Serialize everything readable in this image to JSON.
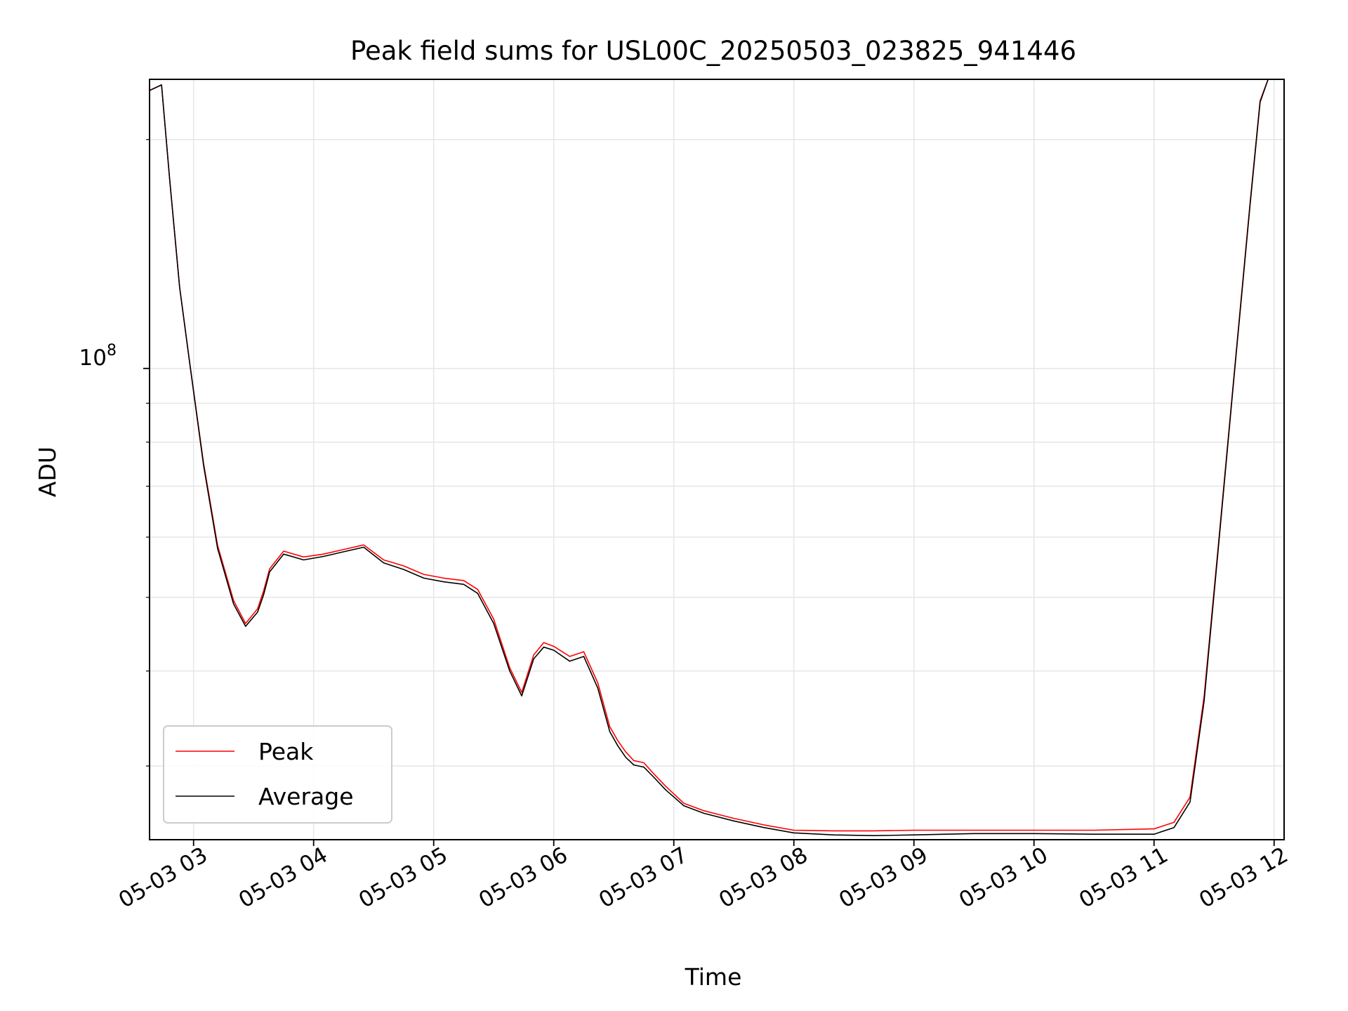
{
  "chart_data": {
    "type": "line",
    "title": "Peak field sums for USL00C_20250503_023825_941446",
    "xlabel": "Time",
    "ylabel": "ADU",
    "y_scale": "log",
    "grid": true,
    "legend_location": "lower-left",
    "x_ticks": [
      "05-03 03",
      "05-03 04",
      "05-03 05",
      "05-03 06",
      "05-03 07",
      "05-03 08",
      "05-03 09",
      "05-03 10",
      "05-03 11",
      "05-03 12"
    ],
    "x_tick_times": [
      "2025-05-03 03:00",
      "2025-05-03 04:00",
      "2025-05-03 05:00",
      "2025-05-03 06:00",
      "2025-05-03 07:00",
      "2025-05-03 08:00",
      "2025-05-03 09:00",
      "2025-05-03 10:00",
      "2025-05-03 11:00",
      "2025-05-03 12:00"
    ],
    "x_range": [
      "2025-05-03 02:38",
      "2025-05-03 12:05"
    ],
    "y_major_tick_label": {
      "base": "10",
      "exponent": "8",
      "value": 100000000
    },
    "ylim": [
      24000000,
      240000000
    ],
    "series": [
      {
        "name": "Peak",
        "color": "#ff0000",
        "x": [
          "2025-05-03 02:38",
          "2025-05-03 02:44",
          "2025-05-03 02:48",
          "2025-05-03 02:53",
          "2025-05-03 02:58",
          "2025-05-03 03:05",
          "2025-05-03 03:12",
          "2025-05-03 03:20",
          "2025-05-03 03:26",
          "2025-05-03 03:32",
          "2025-05-03 03:35",
          "2025-05-03 03:38",
          "2025-05-03 03:45",
          "2025-05-03 03:55",
          "2025-05-03 04:05",
          "2025-05-03 04:15",
          "2025-05-03 04:25",
          "2025-05-03 04:35",
          "2025-05-03 04:45",
          "2025-05-03 04:55",
          "2025-05-03 05:05",
          "2025-05-03 05:15",
          "2025-05-03 05:22",
          "2025-05-03 05:30",
          "2025-05-03 05:38",
          "2025-05-03 05:44",
          "2025-05-03 05:50",
          "2025-05-03 05:55",
          "2025-05-03 06:00",
          "2025-05-03 06:08",
          "2025-05-03 06:15",
          "2025-05-03 06:22",
          "2025-05-03 06:28",
          "2025-05-03 06:32",
          "2025-05-03 06:36",
          "2025-05-03 06:40",
          "2025-05-03 06:45",
          "2025-05-03 06:50",
          "2025-05-03 06:56",
          "2025-05-03 07:05",
          "2025-05-03 07:15",
          "2025-05-03 07:30",
          "2025-05-03 07:45",
          "2025-05-03 08:00",
          "2025-05-03 08:20",
          "2025-05-03 08:40",
          "2025-05-03 09:00",
          "2025-05-03 09:30",
          "2025-05-03 10:00",
          "2025-05-03 10:30",
          "2025-05-03 11:00",
          "2025-05-03 11:10",
          "2025-05-03 11:18",
          "2025-05-03 11:25",
          "2025-05-03 11:32",
          "2025-05-03 11:40",
          "2025-05-03 11:48",
          "2025-05-03 11:53",
          "2025-05-03 11:57"
        ],
        "values": [
          232000000,
          236000000,
          178000000,
          128000000,
          102000000,
          75000000,
          58500000,
          49500000,
          46200000,
          48300000,
          51000000,
          54500000,
          57500000,
          56500000,
          57000000,
          57800000,
          58600000,
          56000000,
          55000000,
          53600000,
          53000000,
          52600000,
          51200000,
          46800000,
          40400000,
          37500000,
          42000000,
          43600000,
          43100000,
          41800000,
          42400000,
          38600000,
          33800000,
          32400000,
          31300000,
          30500000,
          30300000,
          29300000,
          28200000,
          26800000,
          26200000,
          25600000,
          25100000,
          24700000,
          24650000,
          24650000,
          24700000,
          24700000,
          24700000,
          24700000,
          24800000,
          25300000,
          27300000,
          37000000,
          58000000,
          98000000,
          165000000,
          225000000,
          240000000
        ]
      },
      {
        "name": "Average",
        "color": "#000000",
        "x": [
          "2025-05-03 02:38",
          "2025-05-03 02:44",
          "2025-05-03 02:48",
          "2025-05-03 02:53",
          "2025-05-03 02:58",
          "2025-05-03 03:05",
          "2025-05-03 03:12",
          "2025-05-03 03:20",
          "2025-05-03 03:26",
          "2025-05-03 03:32",
          "2025-05-03 03:35",
          "2025-05-03 03:38",
          "2025-05-03 03:45",
          "2025-05-03 03:55",
          "2025-05-03 04:05",
          "2025-05-03 04:15",
          "2025-05-03 04:25",
          "2025-05-03 04:35",
          "2025-05-03 04:45",
          "2025-05-03 04:55",
          "2025-05-03 05:05",
          "2025-05-03 05:15",
          "2025-05-03 05:22",
          "2025-05-03 05:30",
          "2025-05-03 05:38",
          "2025-05-03 05:44",
          "2025-05-03 05:50",
          "2025-05-03 05:55",
          "2025-05-03 06:00",
          "2025-05-03 06:08",
          "2025-05-03 06:15",
          "2025-05-03 06:22",
          "2025-05-03 06:28",
          "2025-05-03 06:32",
          "2025-05-03 06:36",
          "2025-05-03 06:40",
          "2025-05-03 06:45",
          "2025-05-03 06:50",
          "2025-05-03 06:56",
          "2025-05-03 07:05",
          "2025-05-03 07:15",
          "2025-05-03 07:30",
          "2025-05-03 07:45",
          "2025-05-03 08:00",
          "2025-05-03 08:20",
          "2025-05-03 08:40",
          "2025-05-03 09:00",
          "2025-05-03 09:30",
          "2025-05-03 10:00",
          "2025-05-03 10:30",
          "2025-05-03 11:00",
          "2025-05-03 11:10",
          "2025-05-03 11:18",
          "2025-05-03 11:25",
          "2025-05-03 11:32",
          "2025-05-03 11:40",
          "2025-05-03 11:48",
          "2025-05-03 11:53",
          "2025-05-03 11:57"
        ],
        "values": [
          232000000,
          236000000,
          178000000,
          128000000,
          102000000,
          74500000,
          58000000,
          49000000,
          45800000,
          47800000,
          50400000,
          54000000,
          57000000,
          56000000,
          56600000,
          57400000,
          58200000,
          55500000,
          54400000,
          53000000,
          52400000,
          52000000,
          50600000,
          46200000,
          40000000,
          37100000,
          41500000,
          43000000,
          42600000,
          41200000,
          41800000,
          38000000,
          33300000,
          31900000,
          30800000,
          30100000,
          29900000,
          29000000,
          27900000,
          26600000,
          26000000,
          25400000,
          24900000,
          24500000,
          24350000,
          24300000,
          24350000,
          24450000,
          24450000,
          24400000,
          24400000,
          24900000,
          26900000,
          36500000,
          57500000,
          97500000,
          164000000,
          224000000,
          240000000
        ]
      }
    ]
  }
}
